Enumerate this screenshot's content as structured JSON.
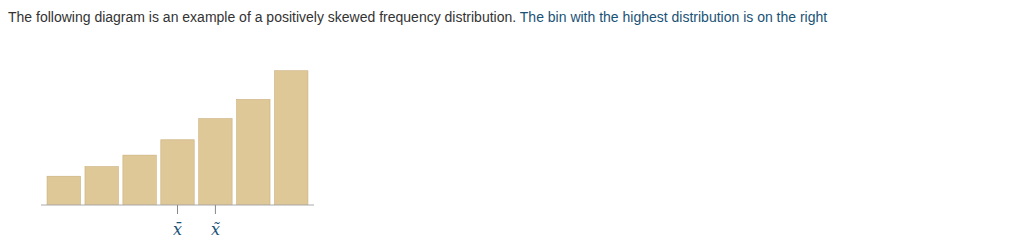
{
  "chart_data": {
    "type": "bar",
    "title": "The following diagram is an example of a positively skewed frequency distribution.",
    "subtitle": " The bin with the highest distribution is on the right",
    "categories": [
      null,
      null,
      null,
      null,
      null,
      null,
      null
    ],
    "values": [
      1.5,
      2.0,
      2.6,
      3.4,
      4.5,
      5.5,
      7.0
    ],
    "color": "#DFC897",
    "ylim": [
      0,
      7.56
    ],
    "grid": false,
    "tick_labels": false,
    "annotations": [
      {
        "text": "x̄",
        "x": 3
      },
      {
        "text": "x̃",
        "x": 4
      }
    ]
  }
}
